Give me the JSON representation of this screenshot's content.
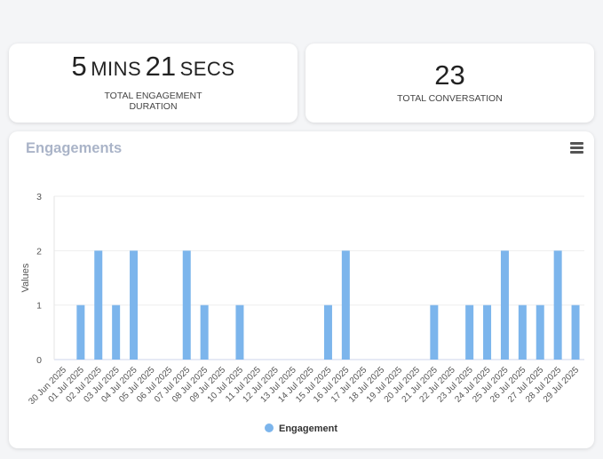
{
  "stats": {
    "duration": {
      "minutes": "5",
      "minutes_unit": "MINS",
      "seconds": "21",
      "seconds_unit": "SECS",
      "label_line1": "TOTAL ENGAGEMENT",
      "label_line2": "DURATION"
    },
    "conversation": {
      "value": "23",
      "label": "TOTAL CONVERSATION"
    }
  },
  "chart_card": {
    "title": "Engagements",
    "menu_icon": "hamburger-menu-icon"
  },
  "chart_data": {
    "type": "bar",
    "title": "Engagements",
    "xlabel": "",
    "ylabel": "Values",
    "ylim": [
      0,
      3
    ],
    "yticks": [
      0,
      1,
      2,
      3
    ],
    "grid": true,
    "legend_position": "bottom",
    "categories": [
      "30 Jun 2025",
      "01 Jul 2025",
      "02 Jul 2025",
      "03 Jul 2025",
      "04 Jul 2025",
      "05 Jul 2025",
      "06 Jul 2025",
      "07 Jul 2025",
      "08 Jul 2025",
      "09 Jul 2025",
      "10 Jul 2025",
      "11 Jul 2025",
      "12 Jul 2025",
      "13 Jul 2025",
      "14 Jul 2025",
      "15 Jul 2025",
      "16 Jul 2025",
      "17 Jul 2025",
      "18 Jul 2025",
      "19 Jul 2025",
      "20 Jul 2025",
      "21 Jul 2025",
      "22 Jul 2025",
      "23 Jul 2025",
      "24 Jul 2025",
      "25 Jul 2025",
      "26 Jul 2025",
      "27 Jul 2025",
      "28 Jul 2025",
      "29 Jul 2025"
    ],
    "series": [
      {
        "name": "Engagement",
        "color": "#7cb5ec",
        "values": [
          0,
          1,
          2,
          1,
          2,
          0,
          0,
          2,
          1,
          0,
          1,
          0,
          0,
          0,
          0,
          1,
          2,
          0,
          0,
          0,
          0,
          1,
          0,
          1,
          1,
          2,
          1,
          1,
          2,
          1
        ]
      }
    ]
  }
}
